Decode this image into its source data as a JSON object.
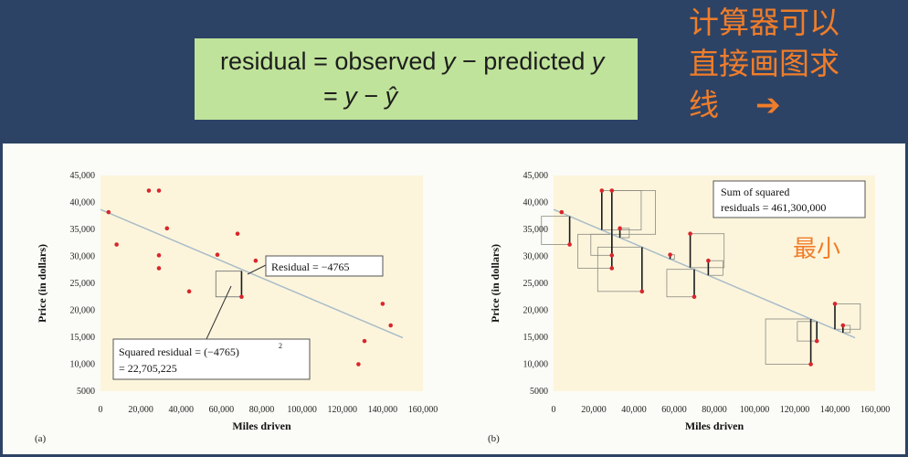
{
  "formula": {
    "line1": {
      "word1": "residual",
      "eq": "=",
      "word2": "observed",
      "var1": "y",
      "minus": "−",
      "word3": "predicted",
      "var2": "y"
    },
    "line2": {
      "eq": "=",
      "var1": "y",
      "minus": "−",
      "var2": "ŷ"
    }
  },
  "note": {
    "line1": "计算器可以",
    "line2": "直接画图求",
    "line3": "线",
    "arrow": "➔"
  },
  "colors": {
    "background": "#2d4365",
    "formula_box": "#bfe39a",
    "plot_bg": "#fcf5dc",
    "point": "#d9262c",
    "regression_line": "#a9bcc8",
    "note_text": "#f07d2a"
  },
  "chart_data": [
    {
      "type": "scatter",
      "panel_label": "(a)",
      "xlabel": "Miles driven",
      "ylabel": "Price (in dollars)",
      "xlim": [
        0,
        160000
      ],
      "ylim": [
        5000,
        45000
      ],
      "xticks": [
        "0",
        "20,000",
        "40,000",
        "60,000",
        "80,000",
        "100,000",
        "120,000",
        "140,000",
        "160,000"
      ],
      "yticks": [
        "5000",
        "10,000",
        "15,000",
        "20,000",
        "25,000",
        "30,000",
        "35,000",
        "40,000",
        "45,000"
      ],
      "points": [
        [
          4000,
          38200
        ],
        [
          8000,
          32200
        ],
        [
          24000,
          42200
        ],
        [
          29000,
          42200
        ],
        [
          29000,
          30200
        ],
        [
          29000,
          27800
        ],
        [
          33000,
          35200
        ],
        [
          44000,
          23500
        ],
        [
          58000,
          30300
        ],
        [
          68000,
          34200
        ],
        [
          70000,
          22500
        ],
        [
          77000,
          29200
        ],
        [
          128000,
          10000
        ],
        [
          131000,
          14300
        ],
        [
          140000,
          21200
        ],
        [
          144000,
          17200
        ]
      ],
      "regression": {
        "x": [
          0,
          150000
        ],
        "y": [
          38700,
          14900
        ]
      },
      "highlight": {
        "x": 70000,
        "observed": 22500,
        "predicted": 27265
      },
      "annotations": {
        "residual": "Residual = −4765",
        "squared_line1_pre": "Squared residual = (−4765)",
        "squared_line1_exp": "2",
        "squared_line2": "= 22,705,225"
      }
    },
    {
      "type": "scatter",
      "panel_label": "(b)",
      "xlabel": "Miles driven",
      "ylabel": "Price (in dollars)",
      "xlim": [
        0,
        160000
      ],
      "ylim": [
        5000,
        45000
      ],
      "xticks": [
        "0",
        "20,000",
        "40,000",
        "60,000",
        "80,000",
        "100,000",
        "120,000",
        "140,000",
        "160,000"
      ],
      "yticks": [
        "5000",
        "10,000",
        "15,000",
        "20,000",
        "25,000",
        "30,000",
        "35,000",
        "40,000",
        "45,000"
      ],
      "points": [
        [
          4000,
          38200
        ],
        [
          8000,
          32200
        ],
        [
          24000,
          42200
        ],
        [
          29000,
          42200
        ],
        [
          29000,
          30200
        ],
        [
          29000,
          27800
        ],
        [
          33000,
          35200
        ],
        [
          44000,
          23500
        ],
        [
          58000,
          30300
        ],
        [
          68000,
          34200
        ],
        [
          70000,
          22500
        ],
        [
          77000,
          29200
        ],
        [
          128000,
          10000
        ],
        [
          131000,
          14300
        ],
        [
          140000,
          21200
        ],
        [
          144000,
          17200
        ]
      ],
      "regression": {
        "x": [
          0,
          150000
        ],
        "y": [
          38700,
          14900
        ]
      },
      "annotations": {
        "sum_line1": "Sum of squared",
        "sum_line2": "residuals = 461,300,000",
        "min_note": "最小"
      }
    }
  ]
}
